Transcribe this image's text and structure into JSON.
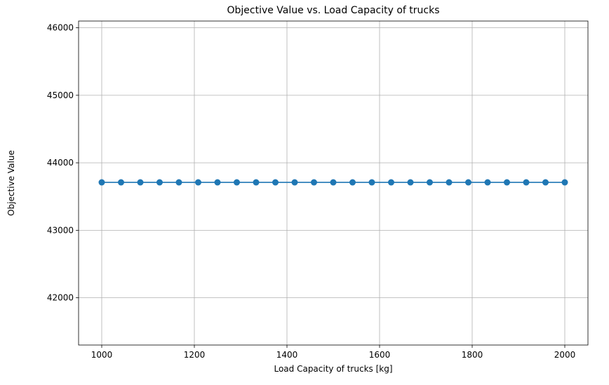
{
  "chart_data": {
    "type": "line",
    "title": "Objective Value vs. Load Capacity of trucks",
    "xlabel": "Load Capacity of trucks [kg]",
    "ylabel": "Objective Value",
    "xlim": [
      950,
      2050
    ],
    "ylim": [
      41300,
      46100
    ],
    "xticks": [
      1000,
      1200,
      1400,
      1600,
      1800,
      2000
    ],
    "yticks": [
      42000,
      43000,
      44000,
      45000,
      46000
    ],
    "grid": true,
    "series": [
      {
        "color": "#1f77b4",
        "marker": "circle",
        "x": [
          1000,
          1041.67,
          1083.33,
          1125,
          1166.67,
          1208.33,
          1250,
          1291.67,
          1333.33,
          1375,
          1416.67,
          1458.33,
          1500,
          1541.67,
          1583.33,
          1625,
          1666.67,
          1708.33,
          1750,
          1791.67,
          1833.33,
          1875,
          1916.67,
          1958.33,
          2000
        ],
        "y": [
          43710,
          43710,
          43710,
          43710,
          43710,
          43710,
          43710,
          43710,
          43710,
          43710,
          43710,
          43710,
          43710,
          43710,
          43710,
          43710,
          43710,
          43710,
          43710,
          43710,
          43710,
          43710,
          43710,
          43710,
          43710
        ]
      }
    ]
  }
}
